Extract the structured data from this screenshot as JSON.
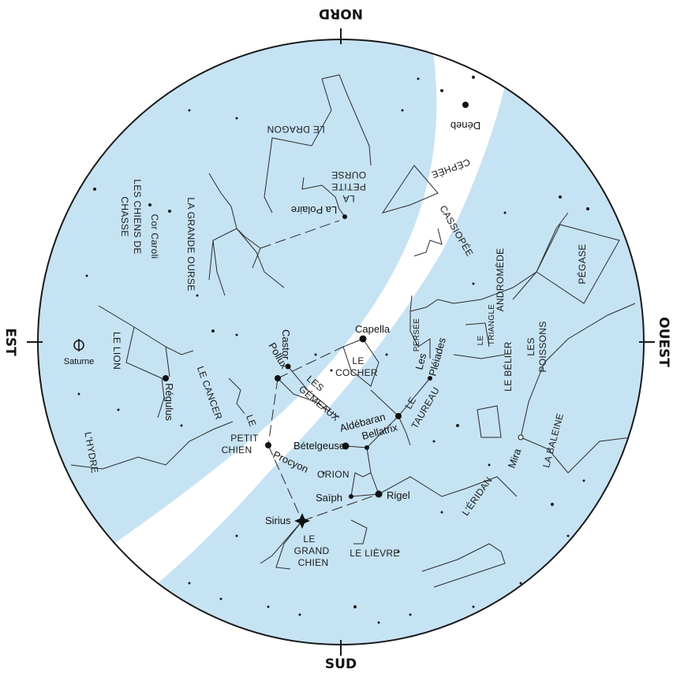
{
  "directions": {
    "north": "NORD",
    "south": "SUD",
    "east": "EST",
    "west": "OUEST"
  },
  "constellations": {
    "dragon": "LE DRAGON",
    "petite_ourse": [
      "LA",
      "PETITE",
      "OURSE"
    ],
    "grande_ourse": "LA GRANDE OURSE",
    "chiens_chasse": [
      "LES CHIENS DE",
      "CHASSE"
    ],
    "cephee": "CÉPHÉE",
    "cassiopee": "CASSIOPÉE",
    "andromede": "ANDROMÈDE",
    "pegase": "PÉGASE",
    "triangle": [
      "LE",
      "TRIANGLE"
    ],
    "persee": "PERSÉE",
    "belier": [
      "LE BÉLIER"
    ],
    "poissons": [
      "LES",
      "POISSONS"
    ],
    "lion": "LE LION",
    "cancer": "LE CANCER",
    "cocher": [
      "LE",
      "COCHER"
    ],
    "gemeaux": [
      "LES",
      "GÉMEAUX"
    ],
    "taureau": [
      "LE",
      "TAUREAU"
    ],
    "hydre": "L'HYDRE",
    "petit_chien": [
      "LE",
      "PETIT",
      "CHIEN"
    ],
    "orion": "ORION",
    "baleine": "LA BALEINE",
    "eridan": "L'ÉRIDAN",
    "grand_chien": [
      "LE",
      "GRAND",
      "CHIEN"
    ],
    "lievre": "LE LIÈVRE"
  },
  "stars": {
    "deneb": "Déneb",
    "polaire": "La Polaire",
    "cor_caroli": "Cor Caroli",
    "saturne": "Saturne",
    "regulus": "Régulus",
    "capella": "Capella",
    "castor": "Castor",
    "pollux": "Pollux",
    "pleiades": [
      "Les",
      "Pléiades"
    ],
    "aldebaran": "Aldébaran",
    "betelgeuse": "Bételgeuse",
    "bellatrix": "Bellatrix",
    "procyon": "Procyon",
    "rigel": "Rigel",
    "saiph": "Saïph",
    "sirius": "Sirius",
    "mira": "Mira"
  },
  "colors": {
    "sky": "#c6e3f4",
    "milky_way": "#ffffff",
    "border": "#1a1a1a"
  }
}
